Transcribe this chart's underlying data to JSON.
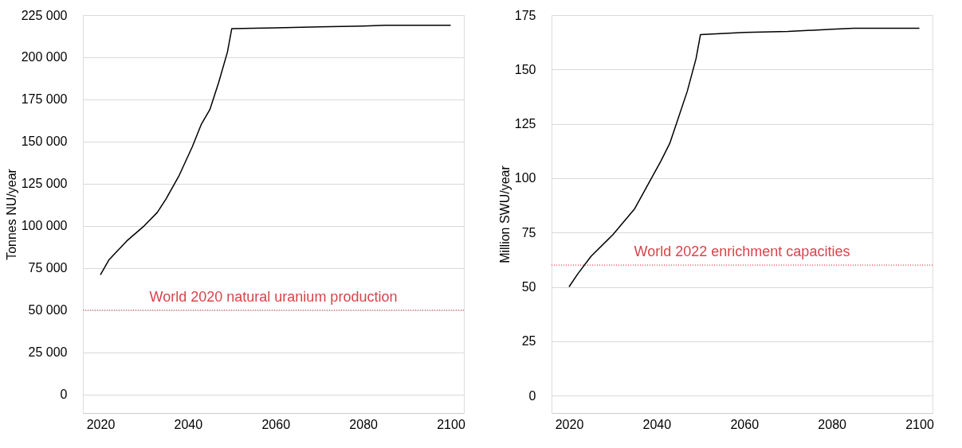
{
  "chart_data": [
    {
      "type": "line",
      "ylabel": "Tonnes NU/year",
      "xlim": [
        2016,
        2103
      ],
      "ylim": [
        -11000,
        225000
      ],
      "xticks": [
        2020,
        2040,
        2060,
        2080,
        2100
      ],
      "yticks": [
        0,
        {
          "value": 25000,
          "label": "25 000"
        },
        {
          "value": 50000,
          "label": "50 000"
        },
        {
          "value": 75000,
          "label": "75 000"
        },
        {
          "value": 100000,
          "label": "100 000"
        },
        {
          "value": 125000,
          "label": "125 000"
        },
        {
          "value": 150000,
          "label": "150 000"
        },
        {
          "value": 175000,
          "label": "175 000"
        },
        {
          "value": 200000,
          "label": "200 000"
        },
        {
          "value": 225000,
          "label": "225 000"
        }
      ],
      "grid": "y",
      "legend": false,
      "marker": "none",
      "line_style": "solid",
      "x": [
        2020,
        2022,
        2026,
        2030,
        2033,
        2035,
        2038,
        2041,
        2043,
        2045,
        2047,
        2049,
        2050,
        2060,
        2070,
        2080,
        2085,
        2100
      ],
      "series": [
        {
          "color": "#000000",
          "values": [
            71000,
            80000,
            91000,
            100000,
            108000,
            116000,
            130000,
            147000,
            160000,
            169000,
            185000,
            203000,
            217000,
            217500,
            218000,
            218500,
            219000,
            219000
          ]
        }
      ],
      "ref_lines": [
        {
          "axis": "y",
          "value": 50000,
          "label": "World 2020 natural uranium production",
          "color": "#d9434b",
          "line_style": "dotted"
        }
      ]
    },
    {
      "type": "line",
      "ylabel": "Million SWU/year",
      "xlim": [
        2016,
        2103
      ],
      "ylim": [
        -8,
        175
      ],
      "xticks": [
        2020,
        2040,
        2060,
        2080,
        2100
      ],
      "yticks": [
        0,
        25,
        50,
        75,
        100,
        125,
        150,
        175
      ],
      "grid": "y",
      "legend": false,
      "marker": "none",
      "line_style": "solid",
      "x": [
        2020,
        2022,
        2025,
        2030,
        2035,
        2038,
        2041,
        2043,
        2045,
        2047,
        2049,
        2050,
        2060,
        2070,
        2080,
        2085,
        2100
      ],
      "series": [
        {
          "color": "#000000",
          "values": [
            50,
            56,
            64,
            74,
            86,
            97,
            108,
            116,
            128,
            140,
            155,
            166,
            167,
            167.5,
            168.5,
            169,
            169
          ]
        }
      ],
      "ref_lines": [
        {
          "axis": "y",
          "value": 60,
          "label": "World 2022 enrichment capacities",
          "color": "#d9434b",
          "line_style": "dotted"
        }
      ]
    }
  ]
}
